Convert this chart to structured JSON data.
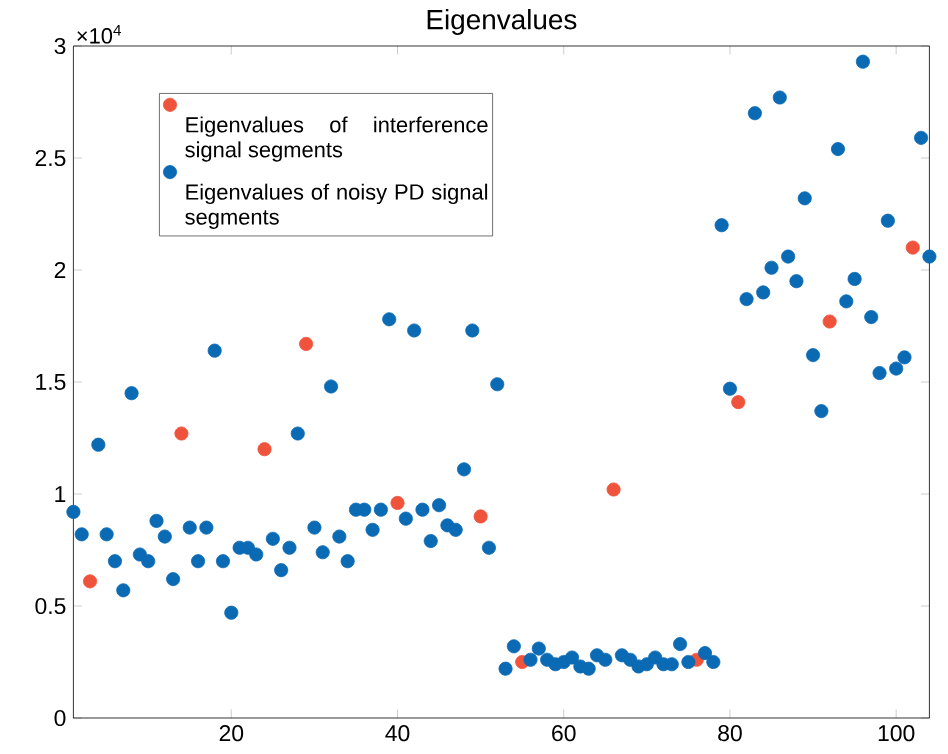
{
  "chart_data": {
    "type": "scatter",
    "title": "Eigenvalues",
    "annotations": [
      "×10$^{4}$"
    ],
    "xlim": [
      1,
      104
    ],
    "xticks": [
      20,
      40,
      60,
      80,
      100
    ],
    "ylim": [
      0,
      3
    ],
    "yticks": [
      0,
      0.5,
      1,
      1.5,
      2,
      2.5,
      3
    ],
    "legend": "top left",
    "marker": "circle",
    "grid": false,
    "series": [
      {
        "name": "Eigenvalues of interference signal segments",
        "color": "#f0533c",
        "x": [
          3,
          14,
          24,
          29,
          40,
          50,
          55,
          66,
          76,
          81,
          92,
          102
        ],
        "values": [
          0.61,
          1.27,
          1.2,
          1.67,
          0.96,
          0.9,
          0.25,
          1.02,
          0.26,
          1.41,
          1.77,
          2.1
        ]
      },
      {
        "name": "Eigenvalues of noisy PD signal segments",
        "color": "#0a6ab4",
        "x": [
          1,
          2,
          4,
          5,
          6,
          7,
          8,
          9,
          10,
          11,
          12,
          13,
          15,
          16,
          17,
          18,
          19,
          20,
          21,
          22,
          23,
          25,
          26,
          27,
          28,
          30,
          31,
          32,
          33,
          34,
          35,
          36,
          37,
          38,
          39,
          41,
          42,
          43,
          44,
          45,
          46,
          47,
          48,
          49,
          51,
          52,
          53,
          54,
          56,
          57,
          58,
          59,
          60,
          61,
          62,
          63,
          64,
          65,
          67,
          68,
          69,
          70,
          71,
          72,
          73,
          74,
          75,
          77,
          78,
          79,
          80,
          82,
          83,
          84,
          85,
          86,
          87,
          88,
          89,
          90,
          91,
          93,
          94,
          95,
          96,
          97,
          98,
          99,
          100,
          101,
          103,
          104
        ],
        "values": [
          0.92,
          0.82,
          1.22,
          0.82,
          0.7,
          0.57,
          1.45,
          0.73,
          0.7,
          0.88,
          0.81,
          0.62,
          0.85,
          0.7,
          0.85,
          1.64,
          0.7,
          0.47,
          0.76,
          0.76,
          0.73,
          0.8,
          0.66,
          0.76,
          1.27,
          0.85,
          0.74,
          1.48,
          0.81,
          0.7,
          0.93,
          0.93,
          0.84,
          0.93,
          1.78,
          0.89,
          1.73,
          0.93,
          0.79,
          0.95,
          0.86,
          0.84,
          1.11,
          1.73,
          0.76,
          1.49,
          0.22,
          0.32,
          0.26,
          0.31,
          0.26,
          0.24,
          0.25,
          0.27,
          0.23,
          0.22,
          0.28,
          0.26,
          0.28,
          0.26,
          0.23,
          0.24,
          0.27,
          0.24,
          0.24,
          0.33,
          0.25,
          0.29,
          0.25,
          2.2,
          1.47,
          1.87,
          2.7,
          1.9,
          2.01,
          2.77,
          2.06,
          1.95,
          2.32,
          1.62,
          1.37,
          2.54,
          1.86,
          1.96,
          2.93,
          1.79,
          1.54,
          2.22,
          1.56,
          1.61,
          2.59,
          2.06
        ]
      }
    ]
  }
}
